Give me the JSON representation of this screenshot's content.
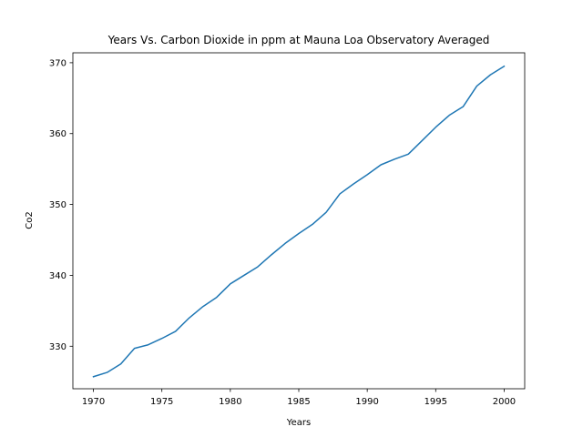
{
  "chart_data": {
    "type": "line",
    "title": "Years Vs. Carbon Dioxide in ppm at Mauna Loa Observatory Averaged",
    "xlabel": "Years",
    "ylabel": "Co2",
    "xlim": [
      1968.5,
      2001.5
    ],
    "ylim": [
      324.0,
      371.4
    ],
    "xticks": [
      1970,
      1975,
      1980,
      1985,
      1990,
      1995,
      2000
    ],
    "yticks": [
      330,
      340,
      350,
      360,
      370
    ],
    "grid": false,
    "x": [
      1970,
      1971,
      1972,
      1973,
      1974,
      1975,
      1976,
      1977,
      1978,
      1979,
      1980,
      1981,
      1982,
      1983,
      1984,
      1985,
      1986,
      1987,
      1988,
      1989,
      1990,
      1991,
      1992,
      1993,
      1994,
      1995,
      1996,
      1997,
      1998,
      1999,
      2000
    ],
    "series": [
      {
        "color": "#1f77b4",
        "values": [
          325.7,
          326.3,
          327.5,
          329.7,
          330.2,
          331.1,
          332.1,
          334.0,
          335.6,
          336.9,
          338.8,
          340.0,
          341.2,
          342.9,
          344.5,
          345.9,
          347.2,
          348.9,
          351.5,
          352.9,
          354.2,
          355.6,
          356.4,
          357.1,
          359.0,
          360.9,
          362.6,
          363.8,
          366.7,
          368.3,
          369.5
        ]
      }
    ]
  }
}
